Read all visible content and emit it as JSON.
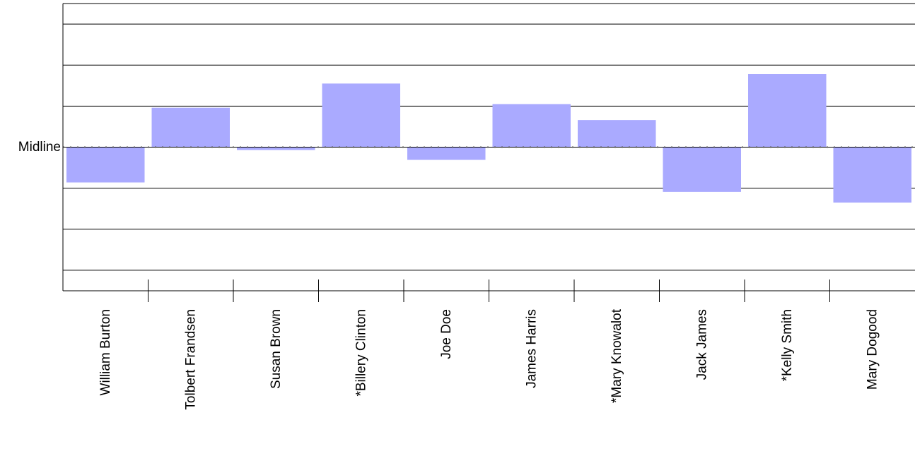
{
  "chart_data": {
    "type": "bar",
    "title": "",
    "xlabel": "",
    "ylabel": "",
    "midline_label": "Midline",
    "categories": [
      "William Burton",
      "Tolbert Frandsen",
      "Susan Brown",
      "*Billery Clinton",
      "Joe Doe",
      "James Harris",
      "*Mary Knowalot",
      "Jack James",
      "*Kelly Smith",
      "Mary Dogood"
    ],
    "values": [
      -0.86,
      0.96,
      -0.07,
      1.55,
      -0.31,
      1.05,
      0.66,
      -1.09,
      1.78,
      -1.35
    ],
    "ylim": [
      -3.5,
      3.5
    ],
    "grid": true,
    "bar_color": "#aaaaff"
  }
}
